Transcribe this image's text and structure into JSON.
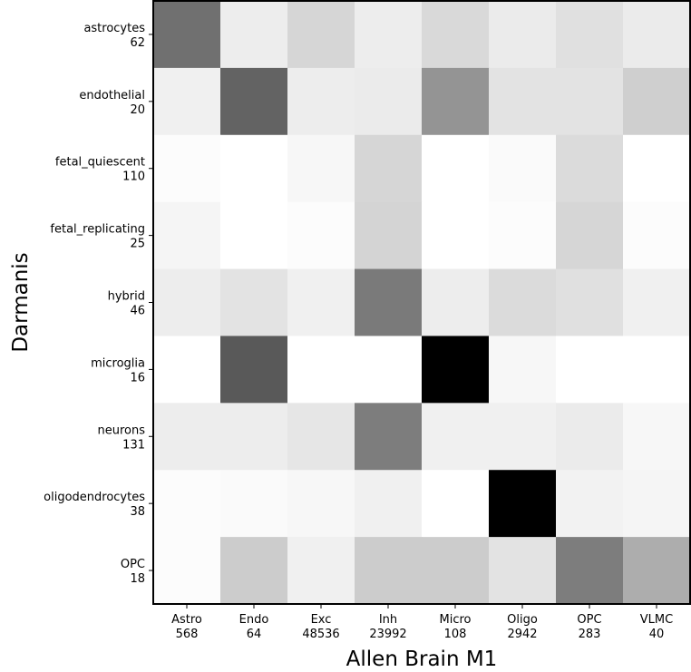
{
  "chart_data": {
    "type": "heatmap",
    "title": "",
    "xlabel": "Allen Brain M1",
    "ylabel": "Darmanis",
    "colormap": "greys",
    "color_low": "#ffffff",
    "color_high": "#000000",
    "value_range": [
      0,
      1
    ],
    "columns": [
      {
        "name": "Astro",
        "count": "568"
      },
      {
        "name": "Endo",
        "count": "64"
      },
      {
        "name": "Exc",
        "count": "48536"
      },
      {
        "name": "Inh",
        "count": "23992"
      },
      {
        "name": "Micro",
        "count": "108"
      },
      {
        "name": "Oligo",
        "count": "2942"
      },
      {
        "name": "OPC",
        "count": "283"
      },
      {
        "name": "VLMC",
        "count": "40"
      }
    ],
    "rows": [
      {
        "name": "astrocytes",
        "count": "62",
        "values": [
          0.56,
          0.07,
          0.16,
          0.07,
          0.15,
          0.08,
          0.12,
          0.08
        ]
      },
      {
        "name": "endothelial",
        "count": "20",
        "values": [
          0.06,
          0.61,
          0.07,
          0.08,
          0.42,
          0.11,
          0.11,
          0.19
        ]
      },
      {
        "name": "fetal_quiescent",
        "count": "110",
        "values": [
          0.01,
          0.0,
          0.03,
          0.16,
          0.0,
          0.02,
          0.14,
          0.0
        ]
      },
      {
        "name": "fetal_replicating",
        "count": "25",
        "values": [
          0.04,
          0.0,
          0.01,
          0.17,
          0.0,
          0.01,
          0.16,
          0.01
        ]
      },
      {
        "name": "hybrid",
        "count": "46",
        "values": [
          0.07,
          0.11,
          0.06,
          0.52,
          0.07,
          0.14,
          0.12,
          0.06
        ]
      },
      {
        "name": "microglia",
        "count": "16",
        "values": [
          0.0,
          0.65,
          0.0,
          0.0,
          1.0,
          0.03,
          0.0,
          0.0
        ]
      },
      {
        "name": "neurons",
        "count": "131",
        "values": [
          0.07,
          0.07,
          0.1,
          0.51,
          0.06,
          0.06,
          0.08,
          0.03
        ]
      },
      {
        "name": "oligodendrocytes",
        "count": "38",
        "values": [
          0.01,
          0.02,
          0.03,
          0.06,
          0.0,
          1.0,
          0.05,
          0.04
        ]
      },
      {
        "name": "OPC",
        "count": "18",
        "values": [
          0.01,
          0.2,
          0.06,
          0.2,
          0.2,
          0.11,
          0.51,
          0.32
        ]
      }
    ]
  }
}
